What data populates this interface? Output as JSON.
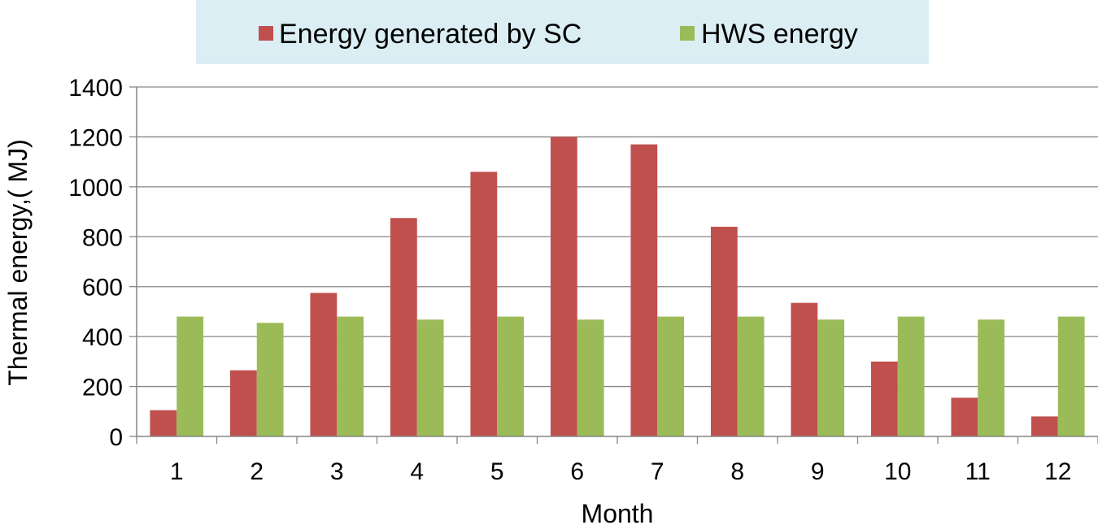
{
  "chart_data": {
    "type": "bar",
    "title": "",
    "xlabel": "Month",
    "ylabel": "Thermal energy,( MJ)",
    "ylim": [
      0,
      1400
    ],
    "yticks": [
      0,
      200,
      400,
      600,
      800,
      1000,
      1200,
      1400
    ],
    "categories": [
      "1",
      "2",
      "3",
      "4",
      "5",
      "6",
      "7",
      "8",
      "9",
      "10",
      "11",
      "12"
    ],
    "series": [
      {
        "name": "Energy generated by SC",
        "color": "#c0504d",
        "values": [
          105,
          265,
          575,
          875,
          1060,
          1200,
          1170,
          840,
          535,
          300,
          155,
          80
        ]
      },
      {
        "name": "HWS energy",
        "color": "#9bbb59",
        "values": [
          480,
          455,
          480,
          468,
          480,
          468,
          480,
          480,
          468,
          480,
          468,
          480
        ]
      }
    ],
    "grid": true,
    "legend_position": "top",
    "legend_background": "#dbeef4",
    "gridline_color": "#868686"
  }
}
